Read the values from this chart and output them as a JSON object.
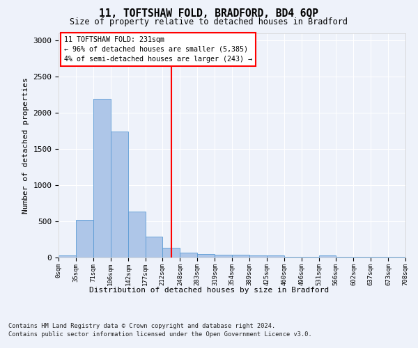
{
  "title1": "11, TOFTSHAW FOLD, BRADFORD, BD4 6QP",
  "title2": "Size of property relative to detached houses in Bradford",
  "xlabel": "Distribution of detached houses by size in Bradford",
  "ylabel": "Number of detached properties",
  "bin_edges": [
    0,
    35,
    71,
    106,
    142,
    177,
    212,
    248,
    283,
    319,
    354,
    389,
    425,
    460,
    496,
    531,
    566,
    602,
    637,
    673,
    708
  ],
  "bar_heights": [
    30,
    520,
    2195,
    1740,
    635,
    290,
    130,
    70,
    50,
    40,
    40,
    25,
    25,
    10,
    10,
    25,
    5,
    5,
    5,
    5
  ],
  "bar_color": "#aec6e8",
  "bar_edge_color": "#5b9bd5",
  "annotation_text1": "11 TOFTSHAW FOLD: 231sqm",
  "annotation_text2": "← 96% of detached houses are smaller (5,385)",
  "annotation_text3": "4% of semi-detached houses are larger (243) →",
  "vline_x": 231,
  "vline_color": "red",
  "ylim": [
    0,
    3100
  ],
  "yticks": [
    0,
    500,
    1000,
    1500,
    2000,
    2500,
    3000
  ],
  "footer1": "Contains HM Land Registry data © Crown copyright and database right 2024.",
  "footer2": "Contains public sector information licensed under the Open Government Licence v3.0.",
  "bg_color": "#eef2fa",
  "plot_bg_color": "#eef2fa"
}
